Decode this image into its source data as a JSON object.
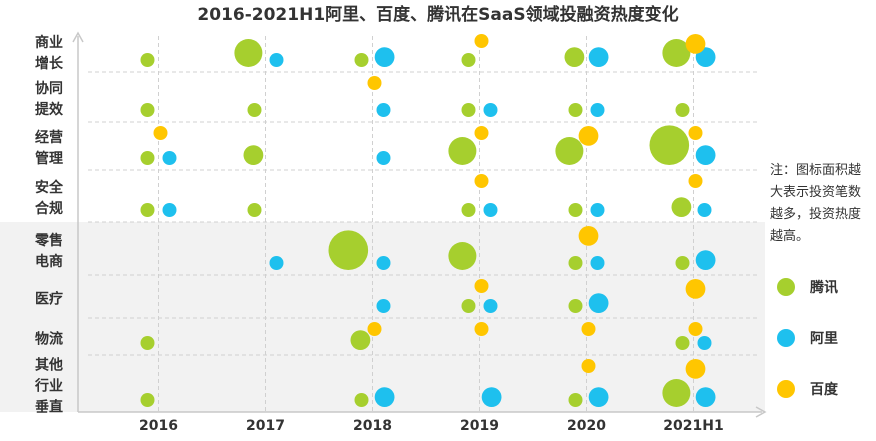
{
  "chart_data": {
    "type": "bubble",
    "title": "2016-2021H1阿里、百度、腾讯在SaaS领域投融资热度变化",
    "categories": [
      "2016",
      "2017",
      "2018",
      "2019",
      "2020",
      "2021H1"
    ],
    "rows": [
      "商业增长",
      "协同提效",
      "经营管理",
      "安全合规",
      "零售电商",
      "医疗",
      "物流",
      "其他行业垂直"
    ],
    "annotation": "注：图标面积越大表示投资笔数越多，投资热度越高。",
    "series": [
      {
        "name": "腾讯",
        "color": "#a6cf2e",
        "values": [
          [
            1,
            4,
            1,
            1,
            2,
            4
          ],
          [
            1,
            1,
            null,
            1,
            1,
            1
          ],
          [
            1,
            2,
            null,
            4,
            4,
            8
          ],
          [
            1,
            1,
            null,
            1,
            1,
            2
          ],
          [
            null,
            null,
            8,
            4,
            1,
            1
          ],
          [
            null,
            null,
            null,
            1,
            1,
            null
          ],
          [
            1,
            null,
            2,
            null,
            null,
            1
          ],
          [
            1,
            null,
            1,
            null,
            1,
            4
          ]
        ]
      },
      {
        "name": "阿里",
        "color": "#1ec0ee",
        "values": [
          [
            null,
            1,
            2,
            null,
            2,
            2
          ],
          [
            null,
            null,
            1,
            1,
            1,
            null
          ],
          [
            1,
            null,
            1,
            null,
            null,
            2
          ],
          [
            1,
            null,
            null,
            1,
            1,
            1
          ],
          [
            null,
            1,
            1,
            null,
            1,
            2
          ],
          [
            null,
            null,
            1,
            1,
            2,
            null
          ],
          [
            null,
            null,
            null,
            null,
            null,
            1
          ],
          [
            null,
            null,
            2,
            2,
            2,
            2
          ]
        ]
      },
      {
        "name": "百度",
        "color": "#ffc600",
        "values": [
          [
            null,
            null,
            null,
            1,
            null,
            2
          ],
          [
            null,
            null,
            1,
            null,
            null,
            null
          ],
          [
            1,
            null,
            null,
            1,
            2,
            1
          ],
          [
            null,
            null,
            null,
            1,
            null,
            1
          ],
          [
            null,
            null,
            null,
            null,
            2,
            null
          ],
          [
            null,
            null,
            null,
            1,
            null,
            2
          ],
          [
            null,
            null,
            1,
            1,
            1,
            1
          ],
          [
            null,
            null,
            null,
            null,
            1,
            2
          ]
        ]
      }
    ]
  }
}
